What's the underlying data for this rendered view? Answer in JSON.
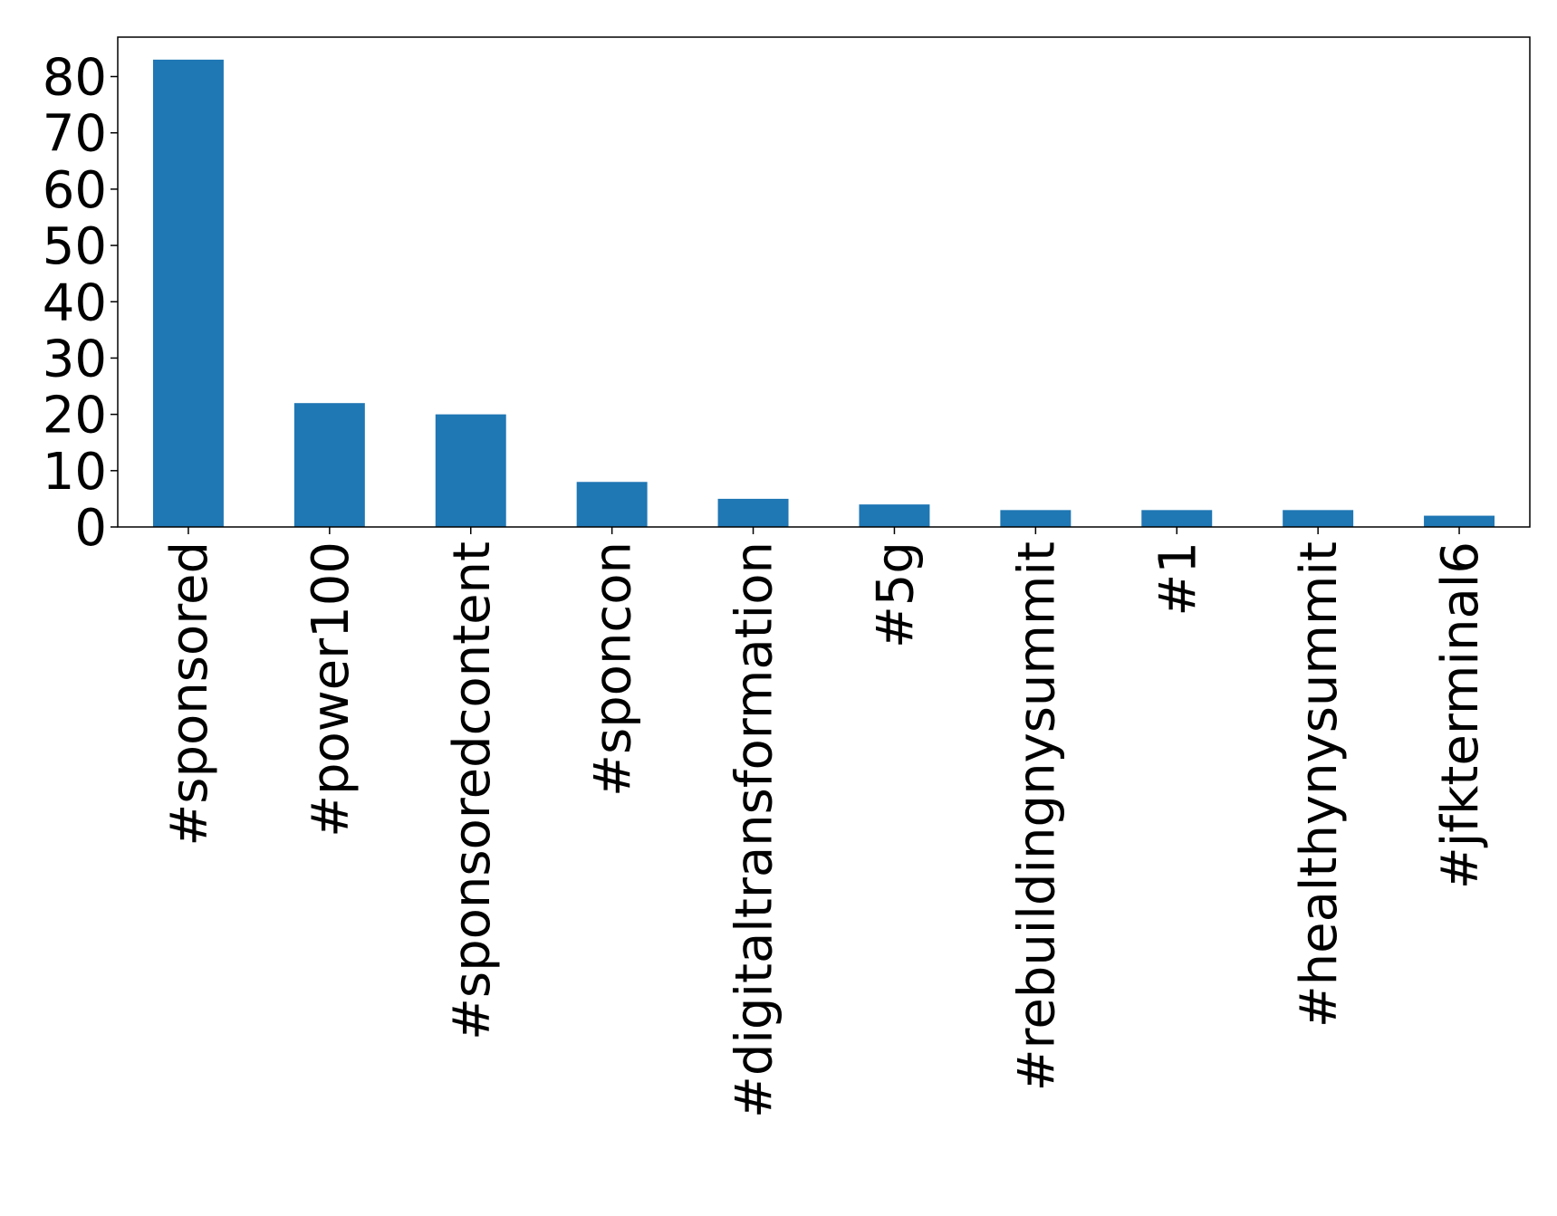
{
  "chart_data": {
    "type": "bar",
    "title": "",
    "xlabel": "",
    "ylabel": "",
    "categories": [
      "#sponsored",
      "#power100",
      "#sponsoredcontent",
      "#sponcon",
      "#digitaltransformation",
      "#5g",
      "#rebuildingnysummit",
      "#1",
      "#healthynysummit",
      "#jfkterminal6"
    ],
    "values": [
      83,
      22,
      20,
      8,
      5,
      4,
      3,
      3,
      3,
      2
    ],
    "ylim": [
      0,
      87
    ],
    "yticks": [
      0,
      10,
      20,
      30,
      40,
      50,
      60,
      70,
      80
    ],
    "bar_color": "#1f77b4",
    "grid": false,
    "legend": "none"
  }
}
